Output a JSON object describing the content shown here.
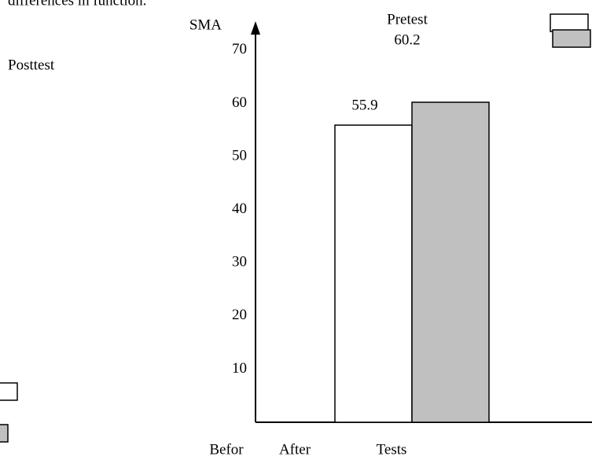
{
  "chart_data": {
    "type": "bar",
    "caption": "differences in function.",
    "y_label": "SMA",
    "x_label": "Tests",
    "annotations": [
      "Befor",
      "After"
    ],
    "series": [
      {
        "name": "Pretest",
        "color": "#ffffff",
        "values": [
          55.9
        ]
      },
      {
        "name": "Posttest",
        "color": "#c0c0c0",
        "values": [
          60.2
        ]
      }
    ],
    "ylim": [
      0,
      75
    ],
    "yticks": [
      10,
      20,
      30,
      40,
      50,
      60,
      70
    ],
    "grid": false
  }
}
